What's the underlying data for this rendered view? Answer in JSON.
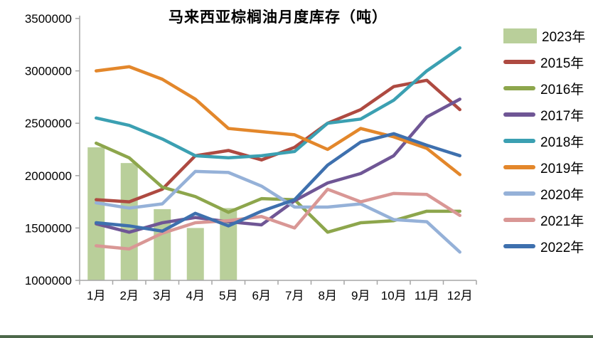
{
  "chart_data": {
    "type": "combo",
    "title": "马来西亚棕榈油月度库存（吨）",
    "unit": "吨",
    "legend_position": "right",
    "grid": false,
    "axis_color": "#a6a6a6",
    "categories": [
      "1月",
      "2月",
      "3月",
      "4月",
      "5月",
      "6月",
      "7月",
      "8月",
      "9月",
      "10月",
      "11月",
      "12月"
    ],
    "y_axis": {
      "min": 1000000,
      "max": 3500000,
      "step": 500000,
      "tick_labels": [
        "3500000",
        "3000000",
        "2500000",
        "2000000",
        "1500000",
        "1000000"
      ]
    },
    "bar_series": {
      "name": "2023年",
      "type": "bar",
      "color": "#b9cf9a",
      "values": [
        2270000,
        2120000,
        1680000,
        1500000,
        1690000
      ]
    },
    "series": [
      {
        "name": "2015年",
        "type": "line",
        "color": "#ae4a41",
        "values": [
          1770000,
          1750000,
          1870000,
          2190000,
          2240000,
          2150000,
          2270000,
          2500000,
          2630000,
          2850000,
          2910000,
          2630000
        ]
      },
      {
        "name": "2016年",
        "type": "line",
        "color": "#8da64c",
        "values": [
          2310000,
          2170000,
          1890000,
          1800000,
          1650000,
          1780000,
          1770000,
          1460000,
          1550000,
          1570000,
          1660000,
          1660000
        ]
      },
      {
        "name": "2017年",
        "type": "line",
        "color": "#6f5695",
        "values": [
          1540000,
          1460000,
          1550000,
          1600000,
          1560000,
          1530000,
          1760000,
          1930000,
          2020000,
          2190000,
          2560000,
          2730000
        ]
      },
      {
        "name": "2018年",
        "type": "line",
        "color": "#3ba0b2",
        "values": [
          2550000,
          2480000,
          2350000,
          2190000,
          2170000,
          2190000,
          2230000,
          2500000,
          2540000,
          2720000,
          3000000,
          3220000
        ]
      },
      {
        "name": "2019年",
        "type": "line",
        "color": "#e3872b",
        "values": [
          3000000,
          3040000,
          2920000,
          2730000,
          2450000,
          2420000,
          2390000,
          2250000,
          2450000,
          2370000,
          2260000,
          2010000
        ]
      },
      {
        "name": "2020年",
        "type": "line",
        "color": "#95b1d8",
        "values": [
          1740000,
          1690000,
          1730000,
          2040000,
          2030000,
          1900000,
          1700000,
          1700000,
          1730000,
          1580000,
          1560000,
          1270000
        ]
      },
      {
        "name": "2021年",
        "type": "line",
        "color": "#d99795",
        "values": [
          1330000,
          1300000,
          1450000,
          1550000,
          1570000,
          1610000,
          1500000,
          1870000,
          1750000,
          1830000,
          1820000,
          1620000
        ]
      },
      {
        "name": "2022年",
        "type": "line",
        "color": "#3e70ae",
        "values": [
          1550000,
          1520000,
          1470000,
          1640000,
          1520000,
          1660000,
          1770000,
          2100000,
          2320000,
          2400000,
          2290000,
          2190000
        ]
      }
    ],
    "bottom_strip_color": "#4d684a"
  }
}
